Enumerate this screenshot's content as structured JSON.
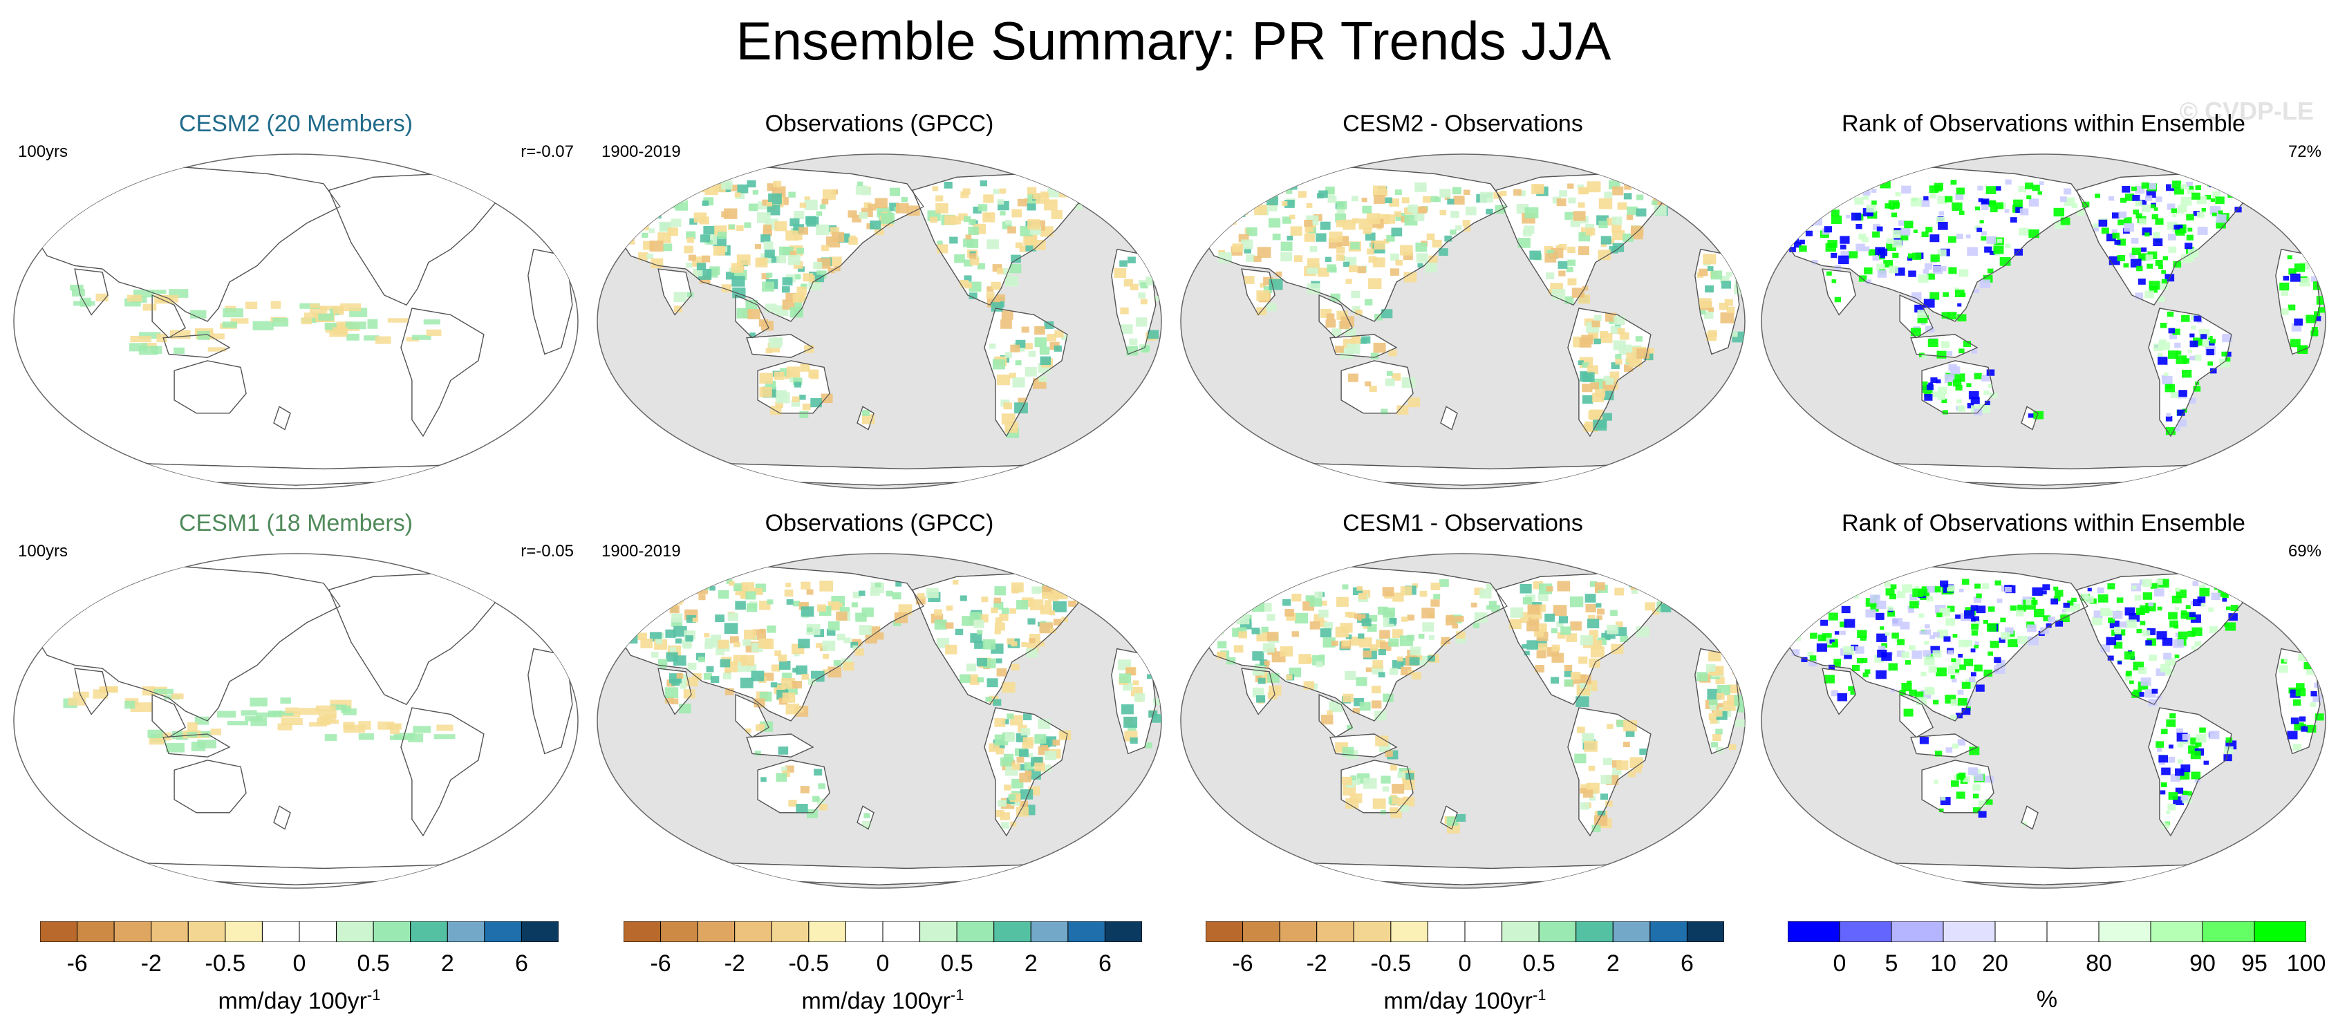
{
  "title": "Ensemble Summary: PR Trends JJA",
  "watermark": "© CVDP-LE",
  "colors": {
    "ocean_model": "#ffffff",
    "ocean_obs": "#e3e3e3",
    "land_outline": "#555555",
    "cesm2_title": "#1f6a8a",
    "cesm1_title": "#4f8a5a",
    "dry": "#f6dc93",
    "wet": "#9feaae",
    "rank_low": "#0000ff",
    "rank_high": "#00ff00"
  },
  "rows": [
    {
      "panels": [
        {
          "title": "CESM2 (20 Members)",
          "title_color": "cesm2_title",
          "left_label": "100yrs",
          "right_label": "r=-0.07",
          "kind": "model"
        },
        {
          "title": "Observations (GPCC)",
          "left_label": "1900-2019",
          "right_label": "",
          "kind": "obs"
        },
        {
          "title": "CESM2 - Observations",
          "left_label": "",
          "right_label": "",
          "kind": "diff"
        },
        {
          "title": "Rank of Observations within Ensemble",
          "left_label": "",
          "right_label": "72%",
          "kind": "rank"
        }
      ]
    },
    {
      "panels": [
        {
          "title": "CESM1 (18 Members)",
          "title_color": "cesm1_title",
          "left_label": "100yrs",
          "right_label": "r=-0.05",
          "kind": "model"
        },
        {
          "title": "Observations (GPCC)",
          "left_label": "1900-2019",
          "right_label": "",
          "kind": "obs"
        },
        {
          "title": "CESM1 - Observations",
          "left_label": "",
          "right_label": "",
          "kind": "diff"
        },
        {
          "title": "Rank of Observations within Ensemble",
          "left_label": "",
          "right_label": "69%",
          "kind": "rank"
        }
      ]
    }
  ],
  "colorbars": [
    {
      "name": "pr-trend",
      "colors": [
        "#b8692b",
        "#cd8a45",
        "#dfa662",
        "#edc27c",
        "#f3d691",
        "#fbf0b5",
        "#ffffff",
        "#ffffff",
        "#cdf5cf",
        "#9ae9b3",
        "#55c1a3",
        "#73a8c8",
        "#1f6fad",
        "#0b3a60"
      ],
      "tick_labels": [
        "-6",
        "-2",
        "-0.5",
        "0",
        "0.5",
        "2",
        "6"
      ],
      "tick_positions": [
        1,
        3,
        5,
        7,
        9,
        11,
        13
      ],
      "unit": "mm/day 100yr",
      "unit_sup": "-1"
    },
    {
      "name": "rank",
      "colors": [
        "#0000ff",
        "#6464ff",
        "#b4b4ff",
        "#e1e1ff",
        "#ffffff",
        "#ffffff",
        "#e1ffe1",
        "#b4ffb4",
        "#64ff64",
        "#00ff00"
      ],
      "tick_labels": [
        "0",
        "5",
        "10",
        "20",
        "80",
        "90",
        "95",
        "100"
      ],
      "tick_positions": [
        1,
        2,
        3,
        4,
        6,
        8,
        9,
        10
      ],
      "unit": "%",
      "unit_sup": ""
    }
  ]
}
